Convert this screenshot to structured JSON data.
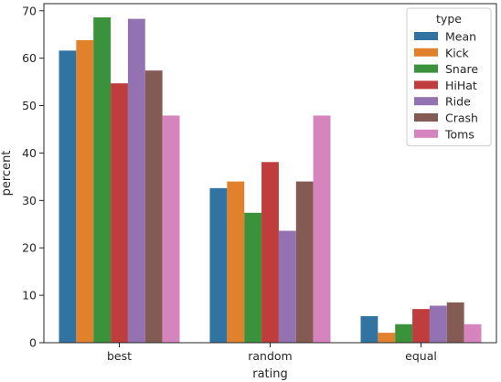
{
  "chart_data": {
    "type": "bar",
    "categories": [
      "best",
      "random",
      "equal"
    ],
    "series": [
      {
        "name": "Mean",
        "values": [
          61.6,
          32.6,
          5.6
        ],
        "color": "#3274a1"
      },
      {
        "name": "Kick",
        "values": [
          63.8,
          34.0,
          2.1
        ],
        "color": "#e1812c"
      },
      {
        "name": "Snare",
        "values": [
          68.6,
          27.4,
          3.9
        ],
        "color": "#3a923a"
      },
      {
        "name": "HiHat",
        "values": [
          54.7,
          38.1,
          7.1
        ],
        "color": "#c03d3e"
      },
      {
        "name": "Ride",
        "values": [
          68.3,
          23.6,
          7.8
        ],
        "color": "#9372b2"
      },
      {
        "name": "Crash",
        "values": [
          57.4,
          34.0,
          8.5
        ],
        "color": "#845b53"
      },
      {
        "name": "Toms",
        "values": [
          47.9,
          47.9,
          3.9
        ],
        "color": "#d684bd"
      }
    ],
    "xlabel": "rating",
    "ylabel": "percent",
    "ylim": [
      0,
      71.5
    ],
    "yticks": [
      0,
      10,
      20,
      30,
      40,
      50,
      60,
      70
    ],
    "legend": {
      "title": "type",
      "position": "top-right"
    },
    "grid": false
  }
}
